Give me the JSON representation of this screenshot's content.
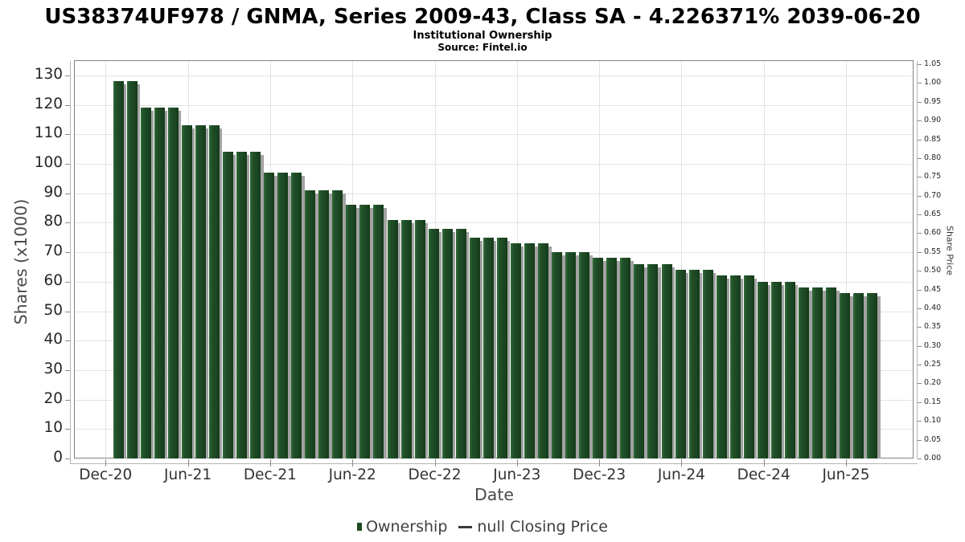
{
  "header": {
    "title": "US38374UF978 / GNMA, Series 2009-43, Class SA - 4.226371% 2039-06-20",
    "subtitle": "Institutional Ownership",
    "source": "Source: Fintel.io"
  },
  "chart_data": {
    "type": "bar",
    "title": "US38374UF978 / GNMA, Series 2009-43, Class SA - 4.226371% 2039-06-20",
    "subtitle": "Institutional Ownership",
    "source": "Source: Fintel.io",
    "xlabel": "Date",
    "ylabel_left": "Shares (x1000)",
    "ylabel_right": "Share Price",
    "x": [
      "Jan-21",
      "Feb-21",
      "Mar-21",
      "Apr-21",
      "May-21",
      "Jun-21",
      "Jul-21",
      "Aug-21",
      "Sep-21",
      "Oct-21",
      "Nov-21",
      "Dec-21",
      "Jan-22",
      "Feb-22",
      "Mar-22",
      "Apr-22",
      "May-22",
      "Jun-22",
      "Jul-22",
      "Aug-22",
      "Sep-22",
      "Oct-22",
      "Nov-22",
      "Dec-22",
      "Jan-23",
      "Feb-23",
      "Mar-23",
      "Apr-23",
      "May-23",
      "Jun-23",
      "Jul-23",
      "Aug-23",
      "Sep-23",
      "Oct-23",
      "Nov-23",
      "Dec-23",
      "Jan-24",
      "Feb-24",
      "Mar-24",
      "Apr-24",
      "May-24",
      "Jun-24",
      "Jul-24",
      "Aug-24",
      "Sep-24",
      "Oct-24",
      "Nov-24",
      "Dec-24",
      "Jan-25",
      "Feb-25",
      "Mar-25",
      "Apr-25",
      "May-25",
      "Jun-25",
      "Jul-25",
      "Aug-25"
    ],
    "values": [
      128,
      128,
      119,
      119,
      119,
      113,
      113,
      113,
      104,
      104,
      104,
      97,
      97,
      97,
      91,
      91,
      91,
      86,
      86,
      86,
      81,
      81,
      81,
      78,
      78,
      78,
      75,
      75,
      75,
      73,
      73,
      73,
      70,
      70,
      70,
      68,
      68,
      68,
      66,
      66,
      66,
      64,
      64,
      64,
      62,
      62,
      62,
      60,
      60,
      60,
      58,
      58,
      58,
      56,
      56,
      56
    ],
    "x_ticks": [
      "Dec-20",
      "Jun-21",
      "Dec-21",
      "Jun-22",
      "Dec-22",
      "Jun-23",
      "Dec-23",
      "Jun-24",
      "Dec-24",
      "Jun-25"
    ],
    "y_ticks_left": [
      0,
      10,
      20,
      30,
      40,
      50,
      60,
      70,
      80,
      90,
      100,
      110,
      120,
      130
    ],
    "y_ticks_right": [
      "0.00",
      "0.05",
      "0.10",
      "0.15",
      "0.20",
      "0.25",
      "0.30",
      "0.35",
      "0.40",
      "0.45",
      "0.50",
      "0.55",
      "0.60",
      "0.65",
      "0.70",
      "0.75",
      "0.80",
      "0.85",
      "0.90",
      "0.95",
      "1.00",
      "1.05"
    ],
    "ylim_left": [
      0,
      134.6
    ],
    "ylim_right": [
      0,
      1.05
    ],
    "grid": true,
    "bar_color": "#1d4a24",
    "bar_shadow_color": "#a2a2a2",
    "legend_position": "bottom",
    "legend": [
      {
        "label": "Ownership",
        "marker": "square",
        "color": "#1d4a24"
      },
      {
        "label": "null Closing Price",
        "marker": "line",
        "color": "#3a3a3a"
      }
    ]
  }
}
